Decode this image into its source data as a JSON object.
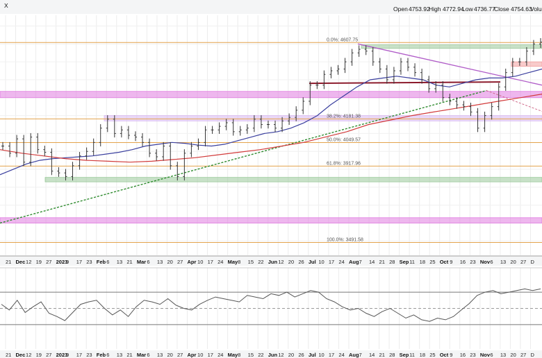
{
  "header": {
    "corner_text": "X",
    "open_label": "Open",
    "open": "4753.92",
    "high_label": "High",
    "high": "4772.94",
    "low_label": "Low",
    "low": "4736.77",
    "close_label": "Close",
    "close": "4754.63",
    "volume_label": "Volum"
  },
  "fib_labels": [
    {
      "text": "0.0%: 4607.75",
      "y": 4607.75
    },
    {
      "text": "38.2%: 4181.38",
      "y": 4181.38
    },
    {
      "text": "50.0%: 4049.57",
      "y": 4049.57
    },
    {
      "text": "61.8%: 3917.96",
      "y": 3917.96
    },
    {
      "text": "100.0%: 3491.58",
      "y": 3491.58
    }
  ],
  "x_ticks": [
    "21",
    "Dec",
    "12",
    "19",
    "27",
    "2023",
    "9",
    "17",
    "23",
    "Feb",
    "6",
    "13",
    "21",
    "Mar",
    "6",
    "13",
    "20",
    "27",
    "Apr",
    "10",
    "17",
    "24",
    "May",
    "8",
    "15",
    "22",
    "Jun",
    "12",
    "20",
    "26",
    "Jul",
    "10",
    "17",
    "24",
    "Aug",
    "7",
    "14",
    "21",
    "28",
    "Sep",
    "11",
    "18",
    "25",
    "Oct",
    "9",
    "16",
    "23",
    "Nov",
    "6",
    "13",
    "20",
    "27",
    "D"
  ],
  "x_ticks_bold": [
    "Dec",
    "2023",
    "Feb",
    "Mar",
    "Apr",
    "May",
    "Jun",
    "Jul",
    "Aug",
    "Sep",
    "Oct",
    "Nov"
  ],
  "colors": {
    "price_bars": "#333333",
    "ma50": "#3a3f9e",
    "ma200": "#d23a3a",
    "trendline_green": "#2e8b2e",
    "resistance_red": "#8b1a2b",
    "downtrend_purple": "#b05cc8",
    "band_green": "#9bc99b",
    "band_magenta": "#e07be0",
    "band_lavender": "#d9b8f0",
    "band_salmon": "#f3a0a0",
    "fib_line": "#e3a24b",
    "rsi_line": "#555555",
    "rsi_fill": "#3e8e8e"
  },
  "chart_data": {
    "type": "ohlc",
    "title": "",
    "ylim": [
      3420,
      4760
    ],
    "series": [
      {
        "name": "Price",
        "values": [
          4030,
          3990,
          4070,
          3940,
          4080,
          4010,
          3995,
          3890,
          3880,
          3860,
          3920,
          3975,
          4000,
          4050,
          4130,
          4180,
          4100,
          4120,
          4090,
          4080,
          4050,
          3990,
          3970,
          4030,
          3920,
          3860,
          3990,
          4030,
          4050,
          4120,
          4120,
          4140,
          4160,
          4110,
          4120,
          4130,
          4180,
          4150,
          4150,
          4130,
          4170,
          4190,
          4230,
          4280,
          4370,
          4370,
          4430,
          4450,
          4460,
          4500,
          4550,
          4570,
          4560,
          4500,
          4460,
          4400,
          4450,
          4500,
          4470,
          4440,
          4400,
          4350,
          4370,
          4300,
          4280,
          4260,
          4250,
          4220,
          4130,
          4200,
          4250,
          4360,
          4440,
          4500,
          4500,
          4560,
          4600,
          4610
        ]
      },
      {
        "name": "50-day MA",
        "values": [
          3870,
          3900,
          3930,
          3950,
          3960,
          3965,
          3970,
          3975,
          3985,
          3995,
          4010,
          4030,
          4040,
          4050,
          4045,
          4035,
          4030,
          4040,
          4060,
          4080,
          4100,
          4110,
          4130,
          4160,
          4200,
          4260,
          4310,
          4360,
          4400,
          4410,
          4420,
          4410,
          4400,
          4370,
          4360,
          4380,
          4400,
          4410,
          4410,
          4420,
          4440,
          4460
        ]
      },
      {
        "name": "200-day MA",
        "values": [
          4010,
          3990,
          3975,
          3960,
          3950,
          3945,
          3940,
          3945,
          3955,
          3965,
          3980,
          3995,
          4010,
          4030,
          4050,
          4080,
          4110,
          4150,
          4175,
          4200,
          4220,
          4240,
          4260,
          4280,
          4300,
          4320
        ]
      }
    ],
    "overlays": {
      "bands": [
        {
          "color": "green",
          "ylo": 4575,
          "yhi": 4595
        },
        {
          "color": "salmon",
          "ylo": 4475,
          "yhi": 4500
        },
        {
          "color": "magenta",
          "ylo": 4300,
          "yhi": 4335
        },
        {
          "color": "lavender",
          "ylo": 4170,
          "yhi": 4200
        },
        {
          "color": "green",
          "ylo": 3830,
          "yhi": 3855
        },
        {
          "color": "magenta",
          "ylo": 3600,
          "yhi": 3630
        }
      ],
      "horizontals": [
        {
          "name": "resistance",
          "y": 4380
        }
      ],
      "trendlines": [
        {
          "name": "uptrend",
          "y_start": 3600,
          "y_end": 4340
        },
        {
          "name": "downtrend",
          "y_start": 4600,
          "y_end": 4370
        }
      ]
    },
    "rsi": {
      "name": "RSI",
      "ylim": [
        0,
        100
      ],
      "reference_lines": [
        30,
        50,
        70
      ],
      "values": [
        55,
        48,
        60,
        45,
        52,
        58,
        44,
        40,
        35,
        45,
        55,
        58,
        60,
        50,
        42,
        48,
        40,
        52,
        60,
        58,
        55,
        62,
        54,
        50,
        48,
        55,
        60,
        64,
        62,
        60,
        58,
        66,
        64,
        62,
        68,
        66,
        70,
        64,
        68,
        72,
        70,
        62,
        58,
        52,
        48,
        50,
        44,
        40,
        46,
        50,
        44,
        38,
        42,
        36,
        34,
        38,
        36,
        40,
        48,
        56,
        66,
        70,
        72,
        68,
        70,
        72,
        74,
        72,
        74
      ]
    }
  }
}
